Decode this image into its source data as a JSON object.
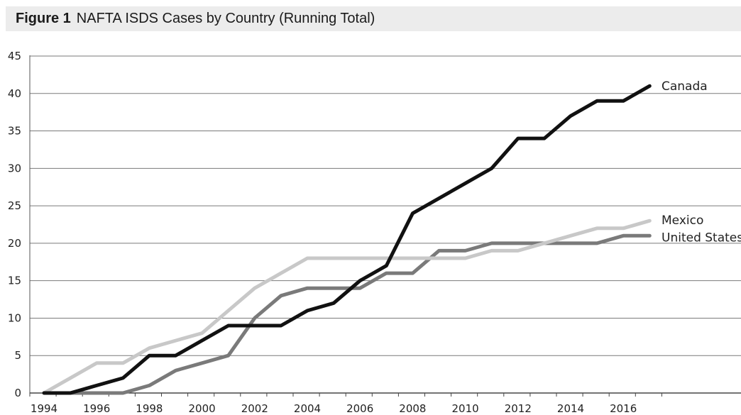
{
  "figure": {
    "label": "Figure 1",
    "caption": "NAFTA ISDS Cases by Country (Running Total)"
  },
  "chart_data": {
    "type": "line",
    "title": "NAFTA ISDS Cases by Country (Running Total)",
    "xlabel": "",
    "ylabel": "",
    "xlim": [
      1994,
      2018
    ],
    "ylim": [
      0,
      45
    ],
    "y_ticks": [
      0,
      5,
      10,
      15,
      20,
      25,
      30,
      35,
      40,
      45
    ],
    "x_ticks": [
      1994,
      1996,
      1998,
      2000,
      2002,
      2004,
      2006,
      2008,
      2010,
      2012,
      2014,
      2016
    ],
    "grid": "horizontal",
    "legend": "direct labels at line ends",
    "x": [
      1994,
      1995,
      1996,
      1997,
      1998,
      1999,
      2000,
      2001,
      2002,
      2003,
      2004,
      2005,
      2006,
      2007,
      2008,
      2009,
      2010,
      2011,
      2012,
      2013,
      2014,
      2015,
      2016,
      2017
    ],
    "series": [
      {
        "name": "Canada",
        "color": "#111111",
        "values": [
          0,
          0,
          1,
          2,
          5,
          5,
          7,
          9,
          9,
          9,
          11,
          12,
          15,
          17,
          24,
          26,
          28,
          30,
          34,
          34,
          37,
          39,
          39,
          41
        ]
      },
      {
        "name": "Mexico",
        "color": "#c8c8c8",
        "values": [
          0,
          2,
          4,
          4,
          6,
          7,
          8,
          11,
          14,
          16,
          18,
          18,
          18,
          18,
          18,
          18,
          18,
          19,
          19,
          20,
          21,
          22,
          22,
          23
        ]
      },
      {
        "name": "United States",
        "color": "#7a7a7a",
        "values": [
          0,
          0,
          0,
          0,
          1,
          3,
          4,
          5,
          10,
          13,
          14,
          14,
          14,
          16,
          16,
          19,
          19,
          20,
          20,
          20,
          20,
          20,
          21,
          21
        ]
      }
    ]
  }
}
